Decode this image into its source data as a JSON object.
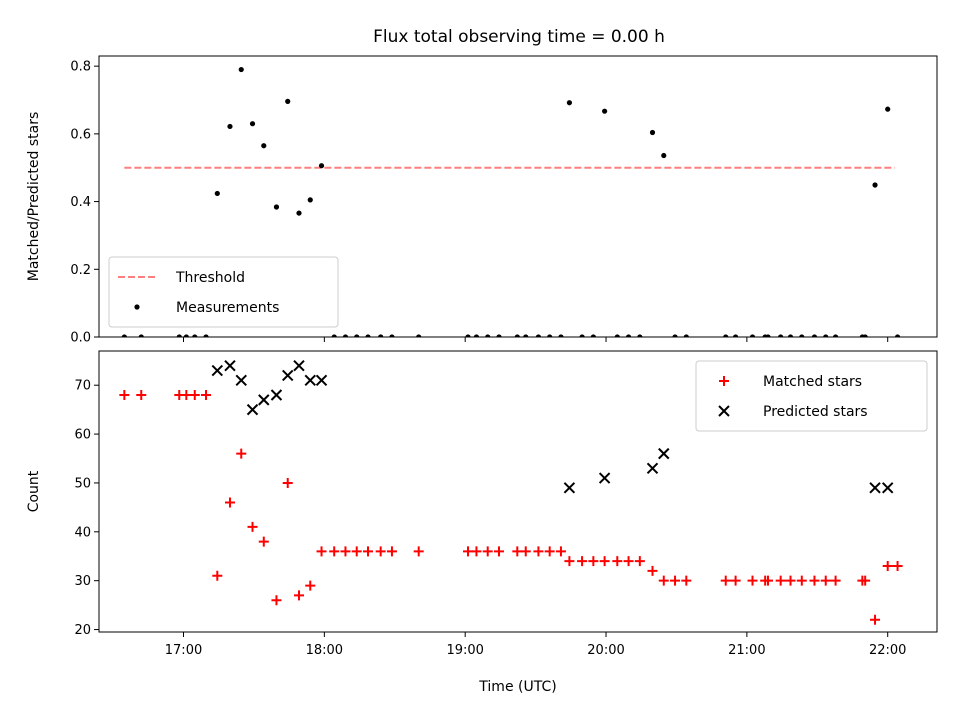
{
  "title": "Flux total observing time = 0.00 h",
  "chart_data": [
    {
      "type": "scatter",
      "panel": "top",
      "ylabel": "Matched/Predicted stars",
      "xlim": [
        16.4,
        22.35
      ],
      "ylim": [
        0.0,
        0.83
      ],
      "yticks": [
        0.0,
        0.2,
        0.4,
        0.6,
        0.8
      ],
      "ytick_labels": [
        "0.0",
        "0.2",
        "0.4",
        "0.6",
        "0.8"
      ],
      "grid": false,
      "legend": "lower-left",
      "threshold": {
        "name": "Threshold",
        "value": 0.5,
        "x_range": [
          16.58,
          22.05
        ],
        "color": "#ff7f7f",
        "style": "dashed"
      },
      "series": [
        {
          "name": "Measurements",
          "marker": "dot",
          "color": "#000000",
          "points": [
            [
              16.58,
              0.0
            ],
            [
              16.7,
              0.0
            ],
            [
              16.97,
              0.0
            ],
            [
              17.02,
              0.0
            ],
            [
              17.08,
              0.0
            ],
            [
              17.16,
              0.0
            ],
            [
              17.24,
              0.424
            ],
            [
              17.33,
              0.622
            ],
            [
              17.41,
              0.79
            ],
            [
              17.49,
              0.63
            ],
            [
              17.57,
              0.565
            ],
            [
              17.66,
              0.384
            ],
            [
              17.74,
              0.696
            ],
            [
              17.82,
              0.366
            ],
            [
              17.9,
              0.405
            ],
            [
              17.98,
              0.506
            ],
            [
              18.07,
              0.0
            ],
            [
              18.15,
              0.0
            ],
            [
              18.23,
              0.0
            ],
            [
              18.31,
              0.0
            ],
            [
              18.4,
              0.0
            ],
            [
              18.48,
              0.0
            ],
            [
              18.67,
              0.0
            ],
            [
              19.02,
              0.0
            ],
            [
              19.08,
              0.0
            ],
            [
              19.16,
              0.0
            ],
            [
              19.24,
              0.0
            ],
            [
              19.37,
              0.0
            ],
            [
              19.43,
              0.0
            ],
            [
              19.52,
              0.0
            ],
            [
              19.6,
              0.0
            ],
            [
              19.68,
              0.0
            ],
            [
              19.74,
              0.692
            ],
            [
              19.83,
              0.0
            ],
            [
              19.91,
              0.0
            ],
            [
              19.99,
              0.667
            ],
            [
              20.08,
              0.0
            ],
            [
              20.16,
              0.0
            ],
            [
              20.24,
              0.0
            ],
            [
              20.33,
              0.604
            ],
            [
              20.41,
              0.536
            ],
            [
              20.49,
              0.0
            ],
            [
              20.57,
              0.0
            ],
            [
              20.85,
              0.0
            ],
            [
              20.92,
              0.0
            ],
            [
              21.04,
              0.0
            ],
            [
              21.13,
              0.0
            ],
            [
              21.15,
              0.0
            ],
            [
              21.24,
              0.0
            ],
            [
              21.31,
              0.0
            ],
            [
              21.39,
              0.0
            ],
            [
              21.48,
              0.0
            ],
            [
              21.56,
              0.0
            ],
            [
              21.63,
              0.0
            ],
            [
              21.82,
              0.0
            ],
            [
              21.84,
              0.0
            ],
            [
              21.91,
              0.449
            ],
            [
              22.0,
              0.673
            ],
            [
              22.07,
              0.0
            ]
          ]
        }
      ]
    },
    {
      "type": "scatter",
      "panel": "bottom",
      "xlabel": "Time (UTC)",
      "ylabel": "Count",
      "xlim": [
        16.4,
        22.35
      ],
      "ylim": [
        19.5,
        77.0
      ],
      "xticks": [
        17,
        18,
        19,
        20,
        21,
        22
      ],
      "xtick_labels": [
        "17:00",
        "18:00",
        "19:00",
        "20:00",
        "21:00",
        "22:00"
      ],
      "yticks": [
        20,
        30,
        40,
        50,
        60,
        70
      ],
      "ytick_labels": [
        "20",
        "30",
        "40",
        "50",
        "60",
        "70"
      ],
      "grid": false,
      "legend": "top-right",
      "series": [
        {
          "name": "Matched stars",
          "marker": "plus",
          "color": "#ff0000",
          "points": [
            [
              16.58,
              68
            ],
            [
              16.7,
              68
            ],
            [
              16.97,
              68
            ],
            [
              17.02,
              68
            ],
            [
              17.08,
              68
            ],
            [
              17.16,
              68
            ],
            [
              17.24,
              31
            ],
            [
              17.33,
              46
            ],
            [
              17.41,
              56
            ],
            [
              17.49,
              41
            ],
            [
              17.57,
              38
            ],
            [
              17.66,
              26
            ],
            [
              17.74,
              50
            ],
            [
              17.82,
              27
            ],
            [
              17.9,
              29
            ],
            [
              17.98,
              36
            ],
            [
              18.07,
              36
            ],
            [
              18.15,
              36
            ],
            [
              18.23,
              36
            ],
            [
              18.31,
              36
            ],
            [
              18.4,
              36
            ],
            [
              18.48,
              36
            ],
            [
              18.67,
              36
            ],
            [
              19.02,
              36
            ],
            [
              19.08,
              36
            ],
            [
              19.16,
              36
            ],
            [
              19.24,
              36
            ],
            [
              19.37,
              36
            ],
            [
              19.43,
              36
            ],
            [
              19.52,
              36
            ],
            [
              19.6,
              36
            ],
            [
              19.68,
              36
            ],
            [
              19.74,
              34
            ],
            [
              19.83,
              34
            ],
            [
              19.91,
              34
            ],
            [
              19.99,
              34
            ],
            [
              20.08,
              34
            ],
            [
              20.16,
              34
            ],
            [
              20.24,
              34
            ],
            [
              20.33,
              32
            ],
            [
              20.41,
              30
            ],
            [
              20.49,
              30
            ],
            [
              20.57,
              30
            ],
            [
              20.85,
              30
            ],
            [
              20.92,
              30
            ],
            [
              21.04,
              30
            ],
            [
              21.13,
              30
            ],
            [
              21.15,
              30
            ],
            [
              21.24,
              30
            ],
            [
              21.31,
              30
            ],
            [
              21.39,
              30
            ],
            [
              21.48,
              30
            ],
            [
              21.56,
              30
            ],
            [
              21.63,
              30
            ],
            [
              21.82,
              30
            ],
            [
              21.84,
              30
            ],
            [
              21.91,
              22
            ],
            [
              22.0,
              33
            ],
            [
              22.07,
              33
            ]
          ]
        },
        {
          "name": "Predicted stars",
          "marker": "x",
          "color": "#000000",
          "points": [
            [
              17.24,
              73
            ],
            [
              17.33,
              74
            ],
            [
              17.41,
              71
            ],
            [
              17.49,
              65
            ],
            [
              17.57,
              67
            ],
            [
              17.66,
              68
            ],
            [
              17.74,
              72
            ],
            [
              17.82,
              74
            ],
            [
              17.9,
              71
            ],
            [
              17.98,
              71
            ],
            [
              19.74,
              49
            ],
            [
              19.99,
              51
            ],
            [
              20.33,
              53
            ],
            [
              20.41,
              56
            ],
            [
              21.91,
              49
            ],
            [
              22.0,
              49
            ]
          ]
        }
      ]
    }
  ]
}
